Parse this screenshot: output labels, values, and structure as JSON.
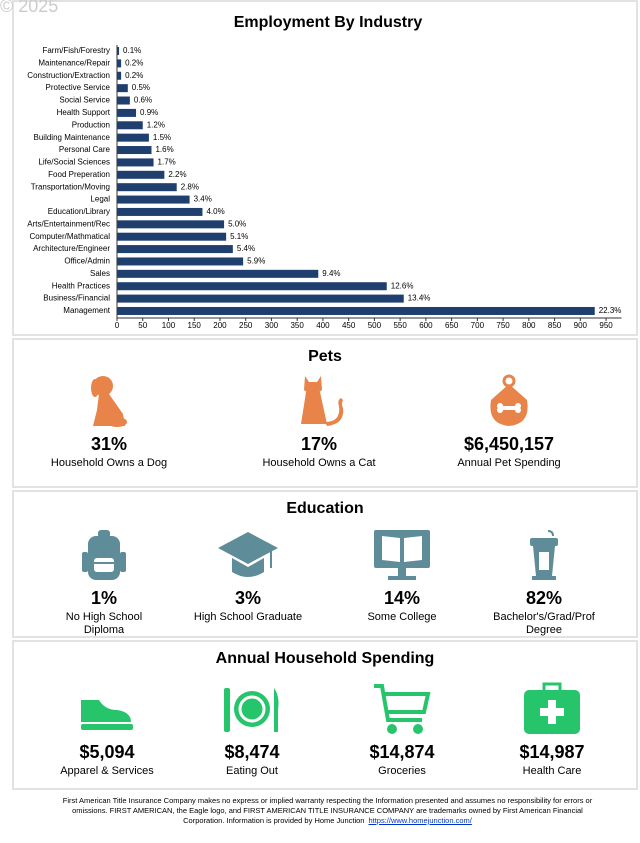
{
  "watermark": "© 2025",
  "chart_data": {
    "type": "bar",
    "orientation": "horizontal",
    "title": "Employment By Industry",
    "categories": [
      "Farm/Fish/Forestry",
      "Maintenance/Repair",
      "Construction/Extraction",
      "Protective Service",
      "Social Service",
      "Health Support",
      "Production",
      "Building Maintenance",
      "Personal Care",
      "Life/Social Sciences",
      "Food Preperation",
      "Transportation/Moving",
      "Legal",
      "Education/Library",
      "Arts/Entertainment/Rec",
      "Computer/Mathmatical",
      "Architecture/Engineer",
      "Office/Admin",
      "Sales",
      "Health Practices",
      "Business/Financial",
      "Management"
    ],
    "values": [
      4,
      8,
      8,
      21,
      25,
      37,
      50,
      62,
      67,
      71,
      92,
      116,
      141,
      166,
      208,
      212,
      225,
      245,
      391,
      524,
      557,
      928
    ],
    "value_labels": [
      "0.1%",
      "0.2%",
      "0.2%",
      "0.5%",
      "0.6%",
      "0.9%",
      "1.2%",
      "1.5%",
      "1.6%",
      "1.7%",
      "2.2%",
      "2.8%",
      "3.4%",
      "4.0%",
      "5.0%",
      "5.1%",
      "5.4%",
      "5.9%",
      "9.4%",
      "12.6%",
      "13.4%",
      "22.3%"
    ],
    "color": "#1f3f6e",
    "xlim": [
      0,
      980
    ],
    "xticks": [
      0,
      50,
      100,
      150,
      200,
      250,
      300,
      350,
      400,
      450,
      500,
      550,
      600,
      650,
      700,
      750,
      800,
      850,
      900,
      950
    ]
  },
  "pets": {
    "title": "Pets",
    "items": [
      {
        "value": "31%",
        "label": "Household Owns a Dog"
      },
      {
        "value": "17%",
        "label": "Household Owns a Cat"
      },
      {
        "value": "$6,450,157",
        "label": "Annual Pet Spending"
      }
    ]
  },
  "education": {
    "title": "Education",
    "items": [
      {
        "value": "1%",
        "label": "No High School Diploma"
      },
      {
        "value": "3%",
        "label": "High School Graduate"
      },
      {
        "value": "14%",
        "label": "Some College"
      },
      {
        "value": "82%",
        "label": "Bachelor's/Grad/Prof Degree"
      }
    ]
  },
  "spending": {
    "title": "Annual Household Spending",
    "items": [
      {
        "value": "$5,094",
        "label": "Apparel & Services"
      },
      {
        "value": "$8,474",
        "label": "Eating Out"
      },
      {
        "value": "$14,874",
        "label": "Groceries"
      },
      {
        "value": "$14,987",
        "label": "Health Care"
      }
    ]
  },
  "footer": {
    "text": "First American Title Insurance Company makes no express or implied warranty respecting the Information presented and assumes no responsibility for errors or omissions. FIRST AMERICAN, the Eagle logo, and FIRST AMERICAN TITLE INSURANCE COMPANY are trademarks owned by First American Financial Corporation. Information is provided by Home Junction",
    "link": "https://www.homejunction.com/"
  }
}
